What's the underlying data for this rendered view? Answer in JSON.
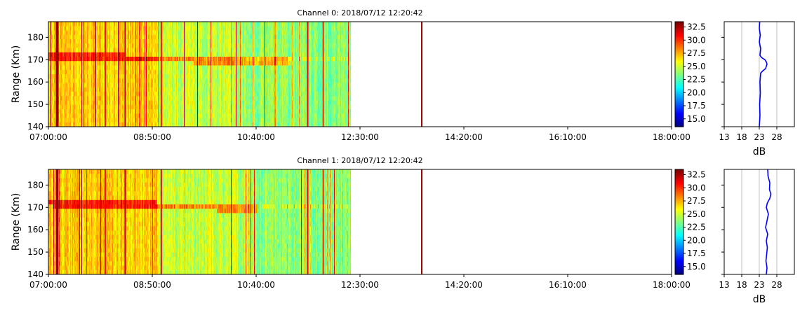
{
  "chart_data": [
    {
      "type": "heatmap",
      "title": "Channel 0: 2018/07/12 12:20:42",
      "ylabel": "Range (Km)",
      "xlabel": "",
      "x_tick_labels": [
        "07:00:00",
        "08:50:00",
        "10:40:00",
        "12:30:00",
        "14:20:00",
        "16:10:00",
        "18:00:00"
      ],
      "y_ticks": [
        140,
        150,
        160,
        170,
        180
      ],
      "ylim": [
        140,
        187
      ],
      "x_range": [
        "07:00:00",
        "18:00:00"
      ],
      "data_end": "12:20:42",
      "band": {
        "range_km": [
          171.5,
          170.5,
          169.5,
          169
        ],
        "end": "11:15:00"
      },
      "colorbar": {
        "ticks": [
          "15.0",
          "17.5",
          "20.0",
          "22.5",
          "25.0",
          "27.5",
          "30.0",
          "32.5"
        ],
        "vmin": 13.5,
        "vmax": 33.5,
        "colormap": "jet"
      },
      "profile": {
        "xlabel": "dB",
        "x_ticks": [
          13,
          18,
          23,
          28
        ],
        "xlim": [
          13,
          33
        ],
        "grid": true,
        "color": "#0000ff",
        "range_km": [
          140,
          145,
          150,
          155,
          160,
          164,
          165,
          166,
          167,
          168,
          169,
          170,
          171,
          172,
          175,
          178,
          181,
          184,
          187
        ],
        "db": [
          23.0,
          23.2,
          23.1,
          23.3,
          23.2,
          23.4,
          24.0,
          24.8,
          25.0,
          25.2,
          25.0,
          24.6,
          23.6,
          23.2,
          23.4,
          23.0,
          23.3,
          23.0,
          23.1
        ]
      }
    },
    {
      "type": "heatmap",
      "title": "Channel 1: 2018/07/12 12:20:42",
      "ylabel": "Range (Km)",
      "xlabel": "",
      "x_tick_labels": [
        "07:00:00",
        "08:50:00",
        "10:40:00",
        "12:30:00",
        "14:20:00",
        "16:10:00",
        "18:00:00"
      ],
      "y_ticks": [
        140,
        150,
        160,
        170,
        180
      ],
      "ylim": [
        140,
        187
      ],
      "x_range": [
        "07:00:00",
        "18:00:00"
      ],
      "data_end": "12:20:42",
      "band": {
        "range_km": [
          172,
          171,
          170,
          169.5
        ],
        "end": "10:42:00"
      },
      "colorbar": {
        "ticks": [
          "15.0",
          "17.5",
          "20.0",
          "22.5",
          "25.0",
          "27.5",
          "30.0",
          "32.5"
        ],
        "vmin": 13.5,
        "vmax": 33.5,
        "colormap": "jet"
      },
      "profile": {
        "xlabel": "dB",
        "x_ticks": [
          13,
          18,
          23,
          28
        ],
        "xlim": [
          13,
          33
        ],
        "grid": true,
        "color": "#0000ff",
        "range_km": [
          140,
          143,
          146,
          149,
          152,
          155,
          158,
          161,
          164,
          167,
          170,
          172,
          174,
          176,
          178,
          181,
          184,
          187
        ],
        "db": [
          25.0,
          25.2,
          24.9,
          25.1,
          25.3,
          25.0,
          25.4,
          24.8,
          25.2,
          25.6,
          25.0,
          25.3,
          26.0,
          26.3,
          25.9,
          26.0,
          25.5,
          25.4
        ]
      }
    }
  ]
}
